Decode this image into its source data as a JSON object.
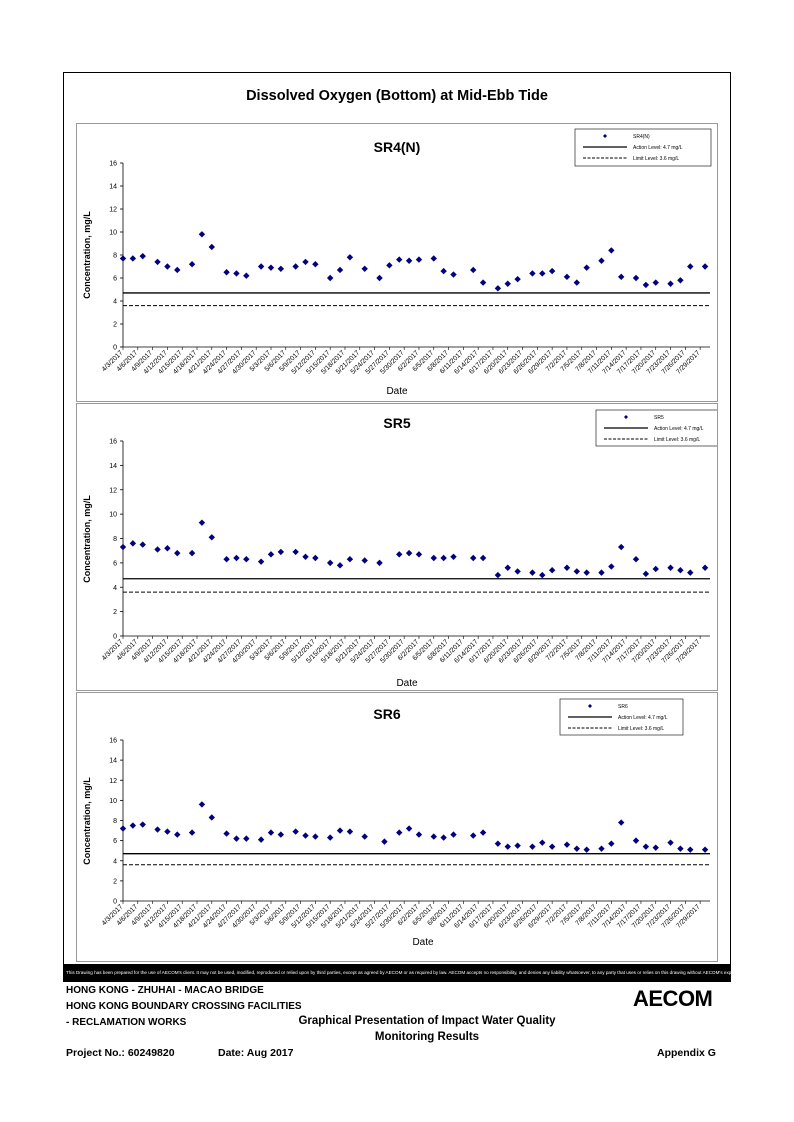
{
  "page_title": "Dissolved Oxygen (Bottom) at Mid-Ebb Tide",
  "disclaimer": "This Drawing has been prepared for the use of AECOM's client. It may not be used, modified, reproduced or relied upon by third parties, except as agreed by AECOM or as required by law. AECOM accepts no responsibility, and denies any liability whatsoever, to any party that uses or relies on this drawing without AECOM's express written consent.",
  "footer": {
    "line1": "HONG KONG - ZHUHAI - MACAO BRIDGE",
    "line2": "HONG KONG BOUNDARY CROSSING FACILITIES",
    "line3": "- RECLAMATION WORKS",
    "presentation_title_1": "Graphical Presentation of Impact Water Quality",
    "presentation_title_2": "Monitoring Results",
    "project": "Project No.: 60249820",
    "date": "Date: Aug 2017",
    "appendix": "Appendix G",
    "logo": "AECOM"
  },
  "chart_data": [
    {
      "type": "scatter",
      "title": "SR4(N)",
      "xlabel": "Date",
      "ylabel": "Concentration, mg/L",
      "ylim": [
        0,
        16
      ],
      "yticks": [
        0,
        2,
        4,
        6,
        8,
        10,
        12,
        14,
        16
      ],
      "xlim": [
        "4/3/2017",
        "7/31/2017"
      ],
      "tick_labels": [
        "4/3/2017",
        "4/6/2017",
        "4/9/2017",
        "4/12/2017",
        "4/15/2017",
        "4/18/2017",
        "4/21/2017",
        "4/24/2017",
        "4/27/2017",
        "4/30/2017",
        "5/3/2017",
        "5/6/2017",
        "5/9/2017",
        "5/12/2017",
        "5/15/2017",
        "5/18/2017",
        "5/21/2017",
        "5/24/2017",
        "5/27/2017",
        "5/30/2017",
        "6/2/2017",
        "6/5/2017",
        "6/8/2017",
        "6/11/2017",
        "6/14/2017",
        "6/17/2017",
        "6/20/2017",
        "6/23/2017",
        "6/26/2017",
        "6/29/2017",
        "7/2/2017",
        "7/5/2017",
        "7/8/2017",
        "7/11/2017",
        "7/14/2017",
        "7/17/2017",
        "7/20/2017",
        "7/23/2017",
        "7/26/2017",
        "7/29/2017"
      ],
      "legend_position": "top-right",
      "legend": [
        "SR4(N)",
        "Action Level: 4.7 mg/L",
        "Limit Level: 3.6 mg/L"
      ],
      "action_level": 4.7,
      "limit_level": 3.6,
      "colors": {
        "marker": "#000080",
        "action": "#000000",
        "limit": "#000000"
      },
      "x": [
        "4/3/2017",
        "4/5/2017",
        "4/7/2017",
        "4/10/2017",
        "4/12/2017",
        "4/14/2017",
        "4/17/2017",
        "4/19/2017",
        "4/21/2017",
        "4/24/2017",
        "4/26/2017",
        "4/28/2017",
        "5/1/2017",
        "5/3/2017",
        "5/5/2017",
        "5/8/2017",
        "5/10/2017",
        "5/12/2017",
        "5/15/2017",
        "5/17/2017",
        "5/19/2017",
        "5/22/2017",
        "5/25/2017",
        "5/27/2017",
        "5/29/2017",
        "5/31/2017",
        "6/2/2017",
        "6/5/2017",
        "6/7/2017",
        "6/9/2017",
        "6/13/2017",
        "6/15/2017",
        "6/18/2017",
        "6/20/2017",
        "6/22/2017",
        "6/25/2017",
        "6/27/2017",
        "6/29/2017",
        "7/2/2017",
        "7/4/2017",
        "7/6/2017",
        "7/9/2017",
        "7/11/2017",
        "7/13/2017",
        "7/16/2017",
        "7/18/2017",
        "7/20/2017",
        "7/23/2017",
        "7/25/2017",
        "7/27/2017",
        "7/30/2017"
      ],
      "values": [
        7.7,
        7.7,
        7.9,
        7.4,
        7.0,
        6.7,
        7.2,
        9.8,
        8.7,
        6.5,
        6.4,
        6.2,
        7.0,
        6.9,
        6.8,
        7.0,
        7.4,
        7.2,
        6.0,
        6.7,
        7.8,
        6.8,
        6.0,
        7.1,
        7.6,
        7.5,
        7.6,
        7.7,
        6.6,
        6.3,
        6.7,
        5.6,
        5.1,
        5.5,
        5.9,
        6.4,
        6.4,
        6.6,
        6.1,
        5.6,
        6.9,
        7.5,
        8.4,
        6.1,
        6.0,
        5.4,
        5.6,
        5.5,
        5.8,
        7.0,
        7.0
      ]
    },
    {
      "type": "scatter",
      "title": "SR5",
      "xlabel": "Date",
      "ylabel": "Concentration, mg/L",
      "ylim": [
        0,
        16
      ],
      "yticks": [
        0,
        2,
        4,
        6,
        8,
        10,
        12,
        14,
        16
      ],
      "xlim": [
        "4/3/2017",
        "7/31/2017"
      ],
      "tick_labels": [
        "4/3/2017",
        "4/6/2017",
        "4/9/2017",
        "4/12/2017",
        "4/15/2017",
        "4/18/2017",
        "4/21/2017",
        "4/24/2017",
        "4/27/2017",
        "4/30/2017",
        "5/3/2017",
        "5/6/2017",
        "5/9/2017",
        "5/12/2017",
        "5/15/2017",
        "5/18/2017",
        "5/21/2017",
        "5/24/2017",
        "5/27/2017",
        "5/30/2017",
        "6/2/2017",
        "6/5/2017",
        "6/8/2017",
        "6/11/2017",
        "6/14/2017",
        "6/17/2017",
        "6/20/2017",
        "6/23/2017",
        "6/26/2017",
        "6/29/2017",
        "7/2/2017",
        "7/5/2017",
        "7/8/2017",
        "7/11/2017",
        "7/14/2017",
        "7/17/2017",
        "7/20/2017",
        "7/23/2017",
        "7/26/2017",
        "7/29/2017"
      ],
      "legend_position": "top-right",
      "legend": [
        "SR5",
        "Action Level: 4.7 mg/L",
        "Limit Level: 3.6 mg/L"
      ],
      "action_level": 4.7,
      "limit_level": 3.6,
      "colors": {
        "marker": "#000080",
        "action": "#000000",
        "limit": "#000000"
      },
      "x": [
        "4/3/2017",
        "4/5/2017",
        "4/7/2017",
        "4/10/2017",
        "4/12/2017",
        "4/14/2017",
        "4/17/2017",
        "4/19/2017",
        "4/21/2017",
        "4/24/2017",
        "4/26/2017",
        "4/28/2017",
        "5/1/2017",
        "5/3/2017",
        "5/5/2017",
        "5/8/2017",
        "5/10/2017",
        "5/12/2017",
        "5/15/2017",
        "5/17/2017",
        "5/19/2017",
        "5/22/2017",
        "5/25/2017",
        "5/29/2017",
        "5/31/2017",
        "6/2/2017",
        "6/5/2017",
        "6/7/2017",
        "6/9/2017",
        "6/13/2017",
        "6/15/2017",
        "6/18/2017",
        "6/20/2017",
        "6/22/2017",
        "6/25/2017",
        "6/27/2017",
        "6/29/2017",
        "7/2/2017",
        "7/4/2017",
        "7/6/2017",
        "7/9/2017",
        "7/11/2017",
        "7/13/2017",
        "7/16/2017",
        "7/18/2017",
        "7/20/2017",
        "7/23/2017",
        "7/25/2017",
        "7/27/2017",
        "7/30/2017"
      ],
      "values": [
        7.3,
        7.6,
        7.5,
        7.1,
        7.2,
        6.8,
        6.8,
        9.3,
        8.1,
        6.3,
        6.4,
        6.3,
        6.1,
        6.7,
        6.9,
        6.9,
        6.5,
        6.4,
        6.0,
        5.8,
        6.3,
        6.2,
        6.0,
        6.7,
        6.8,
        6.7,
        6.4,
        6.4,
        6.5,
        6.4,
        6.4,
        5.0,
        5.6,
        5.3,
        5.2,
        5.0,
        5.4,
        5.6,
        5.3,
        5.2,
        5.2,
        5.7,
        7.3,
        6.3,
        5.1,
        5.5,
        5.6,
        5.4,
        5.2,
        5.6
      ]
    },
    {
      "type": "scatter",
      "title": "SR6",
      "xlabel": "Date",
      "ylabel": "Concentration, mg/L",
      "ylim": [
        0,
        16
      ],
      "yticks": [
        0,
        2,
        4,
        6,
        8,
        10,
        12,
        14,
        16
      ],
      "xlim": [
        "4/3/2017",
        "7/31/2017"
      ],
      "tick_labels": [
        "4/3/2017",
        "4/6/2017",
        "4/9/2017",
        "4/12/2017",
        "4/15/2017",
        "4/18/2017",
        "4/21/2017",
        "4/24/2017",
        "4/27/2017",
        "4/30/2017",
        "5/3/2017",
        "5/6/2017",
        "5/9/2017",
        "5/12/2017",
        "5/15/2017",
        "5/18/2017",
        "5/21/2017",
        "5/24/2017",
        "5/27/2017",
        "5/30/2017",
        "6/2/2017",
        "6/5/2017",
        "6/8/2017",
        "6/11/2017",
        "6/14/2017",
        "6/17/2017",
        "6/20/2017",
        "6/23/2017",
        "6/26/2017",
        "6/29/2017",
        "7/2/2017",
        "7/5/2017",
        "7/8/2017",
        "7/11/2017",
        "7/14/2017",
        "7/17/2017",
        "7/20/2017",
        "7/23/2017",
        "7/26/2017",
        "7/29/2017"
      ],
      "legend_position": "top-right",
      "legend": [
        "SR6",
        "Action Level: 4.7 mg/L",
        "Limit Level: 3.6 mg/L"
      ],
      "action_level": 4.7,
      "limit_level": 3.6,
      "colors": {
        "marker": "#000080",
        "action": "#000000",
        "limit": "#000000"
      },
      "x": [
        "4/3/2017",
        "4/5/2017",
        "4/7/2017",
        "4/10/2017",
        "4/12/2017",
        "4/14/2017",
        "4/17/2017",
        "4/19/2017",
        "4/21/2017",
        "4/24/2017",
        "4/26/2017",
        "4/28/2017",
        "5/1/2017",
        "5/3/2017",
        "5/5/2017",
        "5/8/2017",
        "5/10/2017",
        "5/12/2017",
        "5/15/2017",
        "5/17/2017",
        "5/19/2017",
        "5/22/2017",
        "5/26/2017",
        "5/29/2017",
        "5/31/2017",
        "6/2/2017",
        "6/5/2017",
        "6/7/2017",
        "6/9/2017",
        "6/13/2017",
        "6/15/2017",
        "6/18/2017",
        "6/20/2017",
        "6/22/2017",
        "6/25/2017",
        "6/27/2017",
        "6/29/2017",
        "7/2/2017",
        "7/4/2017",
        "7/6/2017",
        "7/9/2017",
        "7/11/2017",
        "7/13/2017",
        "7/16/2017",
        "7/18/2017",
        "7/20/2017",
        "7/23/2017",
        "7/25/2017",
        "7/27/2017",
        "7/30/2017"
      ],
      "values": [
        7.2,
        7.5,
        7.6,
        7.1,
        6.9,
        6.6,
        6.8,
        9.6,
        8.3,
        6.7,
        6.2,
        6.2,
        6.1,
        6.8,
        6.6,
        6.9,
        6.5,
        6.4,
        6.3,
        7.0,
        6.9,
        6.4,
        5.9,
        6.8,
        7.2,
        6.6,
        6.4,
        6.3,
        6.6,
        6.5,
        6.8,
        5.7,
        5.4,
        5.5,
        5.4,
        5.8,
        5.4,
        5.6,
        5.2,
        5.1,
        5.2,
        5.7,
        7.8,
        6.0,
        5.4,
        5.3,
        5.8,
        5.2,
        5.1,
        5.1
      ]
    }
  ]
}
